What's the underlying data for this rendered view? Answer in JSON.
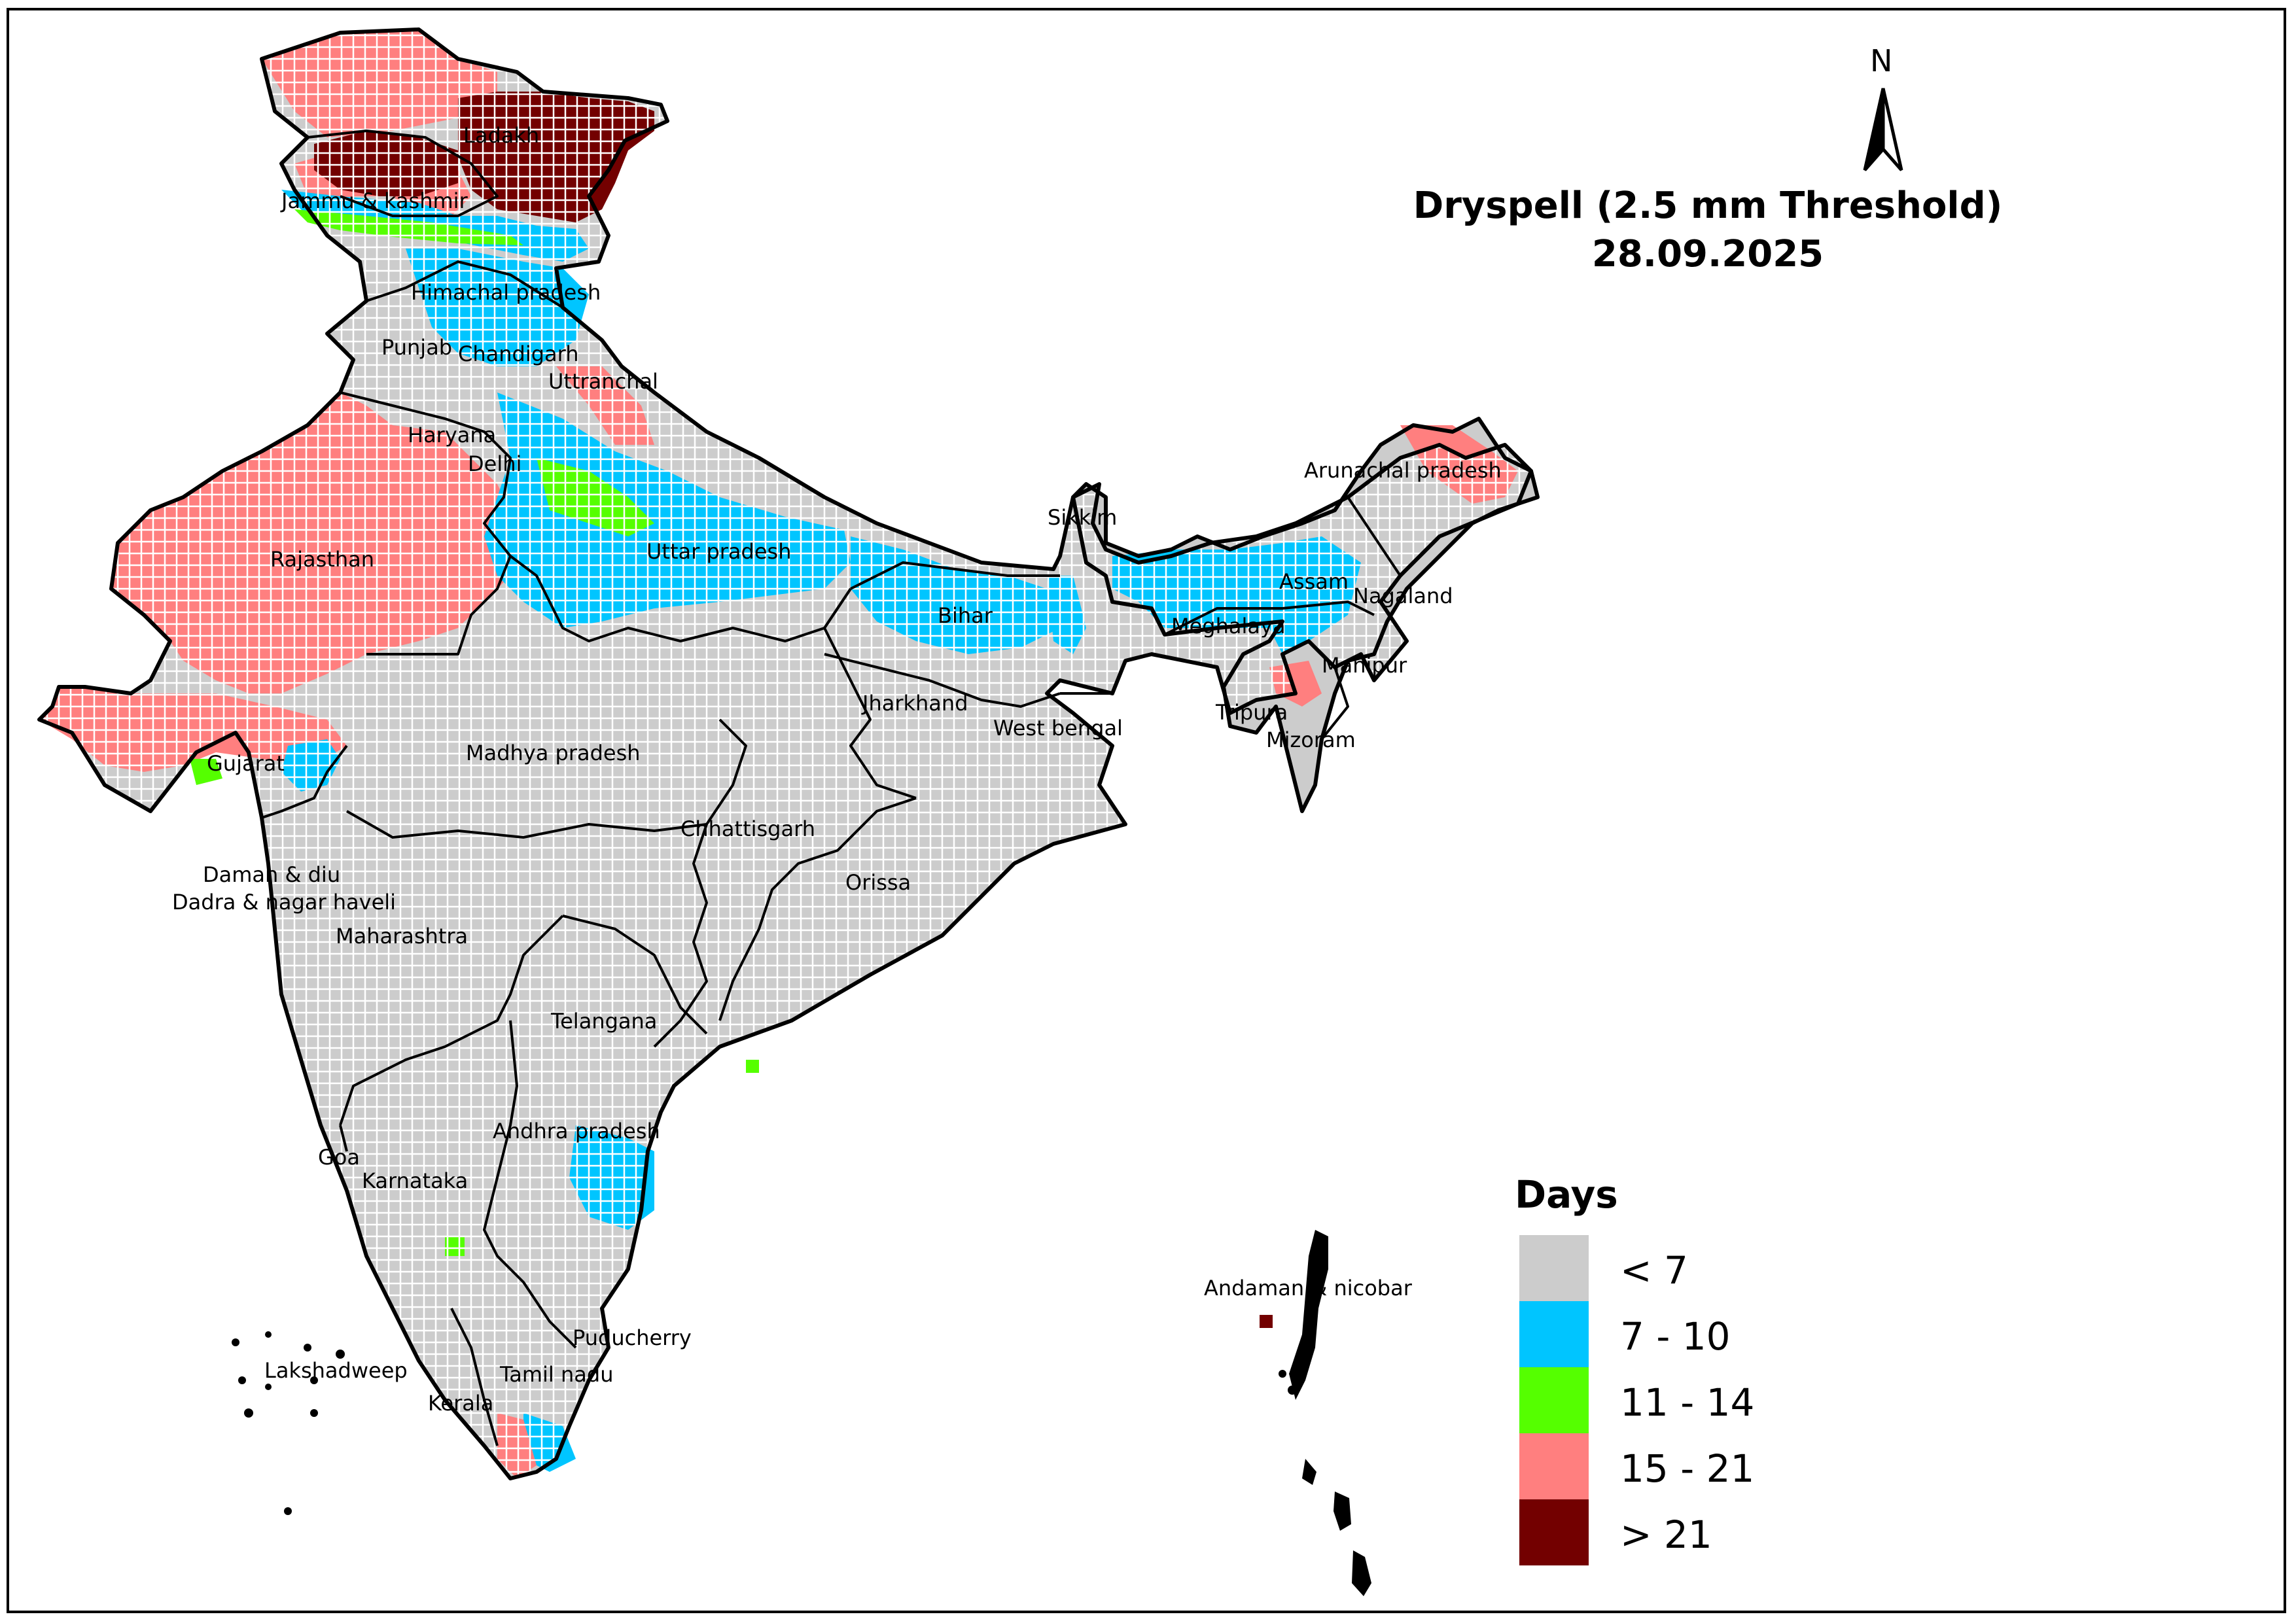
{
  "title": {
    "line1": "Dryspell (2.5 mm Threshold)",
    "line2": "28.09.2025"
  },
  "north_arrow": {
    "label": "N"
  },
  "legend": {
    "title": "Days",
    "items": [
      {
        "label": "< 7",
        "color": "#cccccc"
      },
      {
        "label": "7 - 10",
        "color": "#00c5ff"
      },
      {
        "label": "11 - 14",
        "color": "#55ff00"
      },
      {
        "label": "15 - 21",
        "color": "#ff7f7f"
      },
      {
        "label": "> 21",
        "color": "#730000"
      }
    ]
  },
  "regions": [
    "Ladakh",
    "Jammu & kashmir",
    "Himachal pradesh",
    "Punjab",
    "Chandigarh",
    "Uttranchal",
    "Haryana",
    "Delhi",
    "Rajasthan",
    "Uttar pradesh",
    "Bihar",
    "Sikkim",
    "Arunachal pradesh",
    "Assam",
    "Nagaland",
    "Meghalaya",
    "Manipur",
    "Tripura",
    "Mizoram",
    "Jharkhand",
    "West bengal",
    "Madhya pradesh",
    "Gujarat",
    "Chhattisgarh",
    "Orissa",
    "Daman & diu",
    "Dadra & nagar haveli",
    "Maharashtra",
    "Telangana",
    "Andhra pradesh",
    "Goa",
    "Karnataka",
    "Andaman & nicobar",
    "Puducherry",
    "Lakshadweep",
    "Tamil nadu",
    "Kerala"
  ]
}
